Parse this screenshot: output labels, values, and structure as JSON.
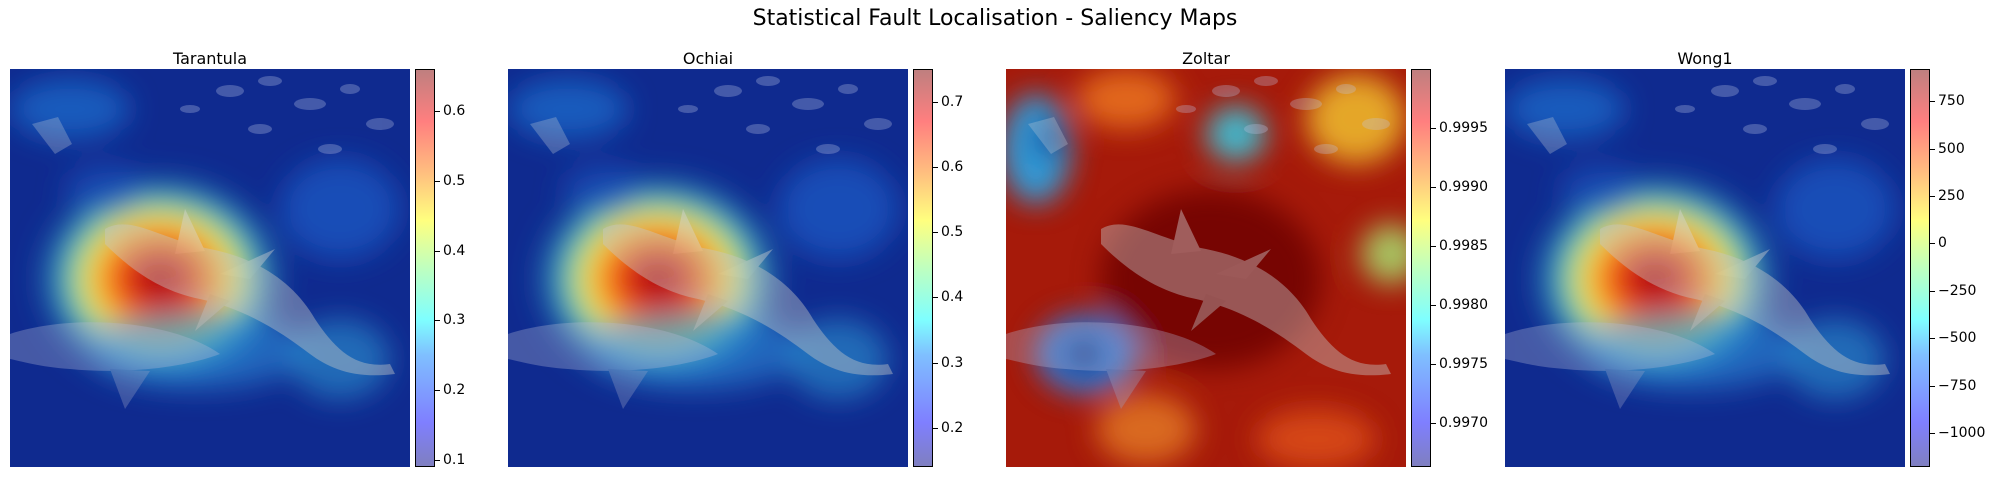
{
  "figure": {
    "title": "Statistical Fault Localisation - Saliency Maps"
  },
  "colormap": "jet",
  "chart_data": [
    {
      "type": "heatmap",
      "title": "Tarantula",
      "colorbar": {
        "min": 0.09,
        "max": 0.66,
        "ticks": [
          0.1,
          0.2,
          0.3,
          0.4,
          0.5,
          0.6
        ],
        "tick_labels": [
          "0.1",
          "0.2",
          "0.3",
          "0.4",
          "0.5",
          "0.6"
        ]
      },
      "pattern": "shark-hot",
      "image": "shark-underwater"
    },
    {
      "type": "heatmap",
      "title": "Ochiai",
      "colorbar": {
        "min": 0.14,
        "max": 0.75,
        "ticks": [
          0.2,
          0.3,
          0.4,
          0.5,
          0.6,
          0.7
        ],
        "tick_labels": [
          "0.2",
          "0.3",
          "0.4",
          "0.5",
          "0.6",
          "0.7"
        ]
      },
      "pattern": "shark-hot",
      "image": "shark-underwater"
    },
    {
      "type": "heatmap",
      "title": "Zoltar",
      "colorbar": {
        "min": 0.99663,
        "max": 1.0,
        "ticks": [
          0.997,
          0.9975,
          0.998,
          0.9985,
          0.999,
          0.9995
        ],
        "tick_labels": [
          "0.9970",
          "0.9975",
          "0.9980",
          "0.9985",
          "0.9990",
          "0.9995"
        ]
      },
      "pattern": "mostly-hot",
      "image": "shark-underwater"
    },
    {
      "type": "heatmap",
      "title": "Wong1",
      "colorbar": {
        "min": -1180,
        "max": 920,
        "ticks": [
          -1000,
          -750,
          -500,
          -250,
          0,
          250,
          500,
          750
        ],
        "tick_labels": [
          "−1000",
          "−750",
          "−500",
          "−250",
          "0",
          "250",
          "500",
          "750"
        ]
      },
      "pattern": "shark-hot",
      "image": "shark-underwater"
    }
  ]
}
